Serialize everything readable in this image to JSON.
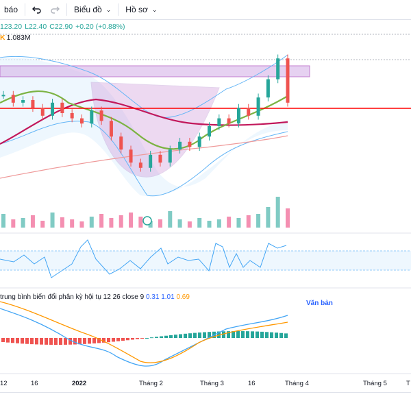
{
  "toolbar": {
    "menu_alert": "báo",
    "undo_icon": "undo-icon",
    "redo_icon": "redo-icon",
    "chart_menu": "Biểu đồ",
    "profile_menu": "Hồ sơ"
  },
  "ohlc": {
    "h": "123.20",
    "l": "L22.40",
    "c": "C22.90",
    "change": "+0.20 (+0.88%)"
  },
  "volume": {
    "label": "K",
    "value": "1.083M"
  },
  "macd": {
    "title": "trung bình biến đổi phân kỳ hội tụ 12 26 close 9",
    "v1": "0.31",
    "v2": "1.01",
    "v3": "0.69"
  },
  "text_tool": "Văn bản",
  "time_axis": [
    "12",
    "16",
    "2022",
    "Tháng 2",
    "Tháng 3",
    "16",
    "Tháng 4",
    "Tháng 5",
    "T"
  ],
  "colors": {
    "up": "#26a69a",
    "down": "#ef5350",
    "accent": "#2962ff",
    "resistance": "#ff0000",
    "zone": "#d6b3e8"
  },
  "chart_data": {
    "type": "line",
    "xlabel": "",
    "ylabel": "",
    "series": [
      {
        "values": [
          23.2,
          22.9,
          23.0,
          22.7,
          22.4,
          22.9,
          22.5,
          22.3,
          22.1,
          22.6,
          22.2,
          21.6,
          21.1,
          20.6,
          20.4,
          20.9,
          20.6,
          21.1,
          21.4,
          21.2,
          21.6,
          22.0,
          22.3,
          22.1,
          22.7,
          22.4,
          23.1,
          23.8,
          24.6,
          22.9
        ]
      }
    ]
  }
}
